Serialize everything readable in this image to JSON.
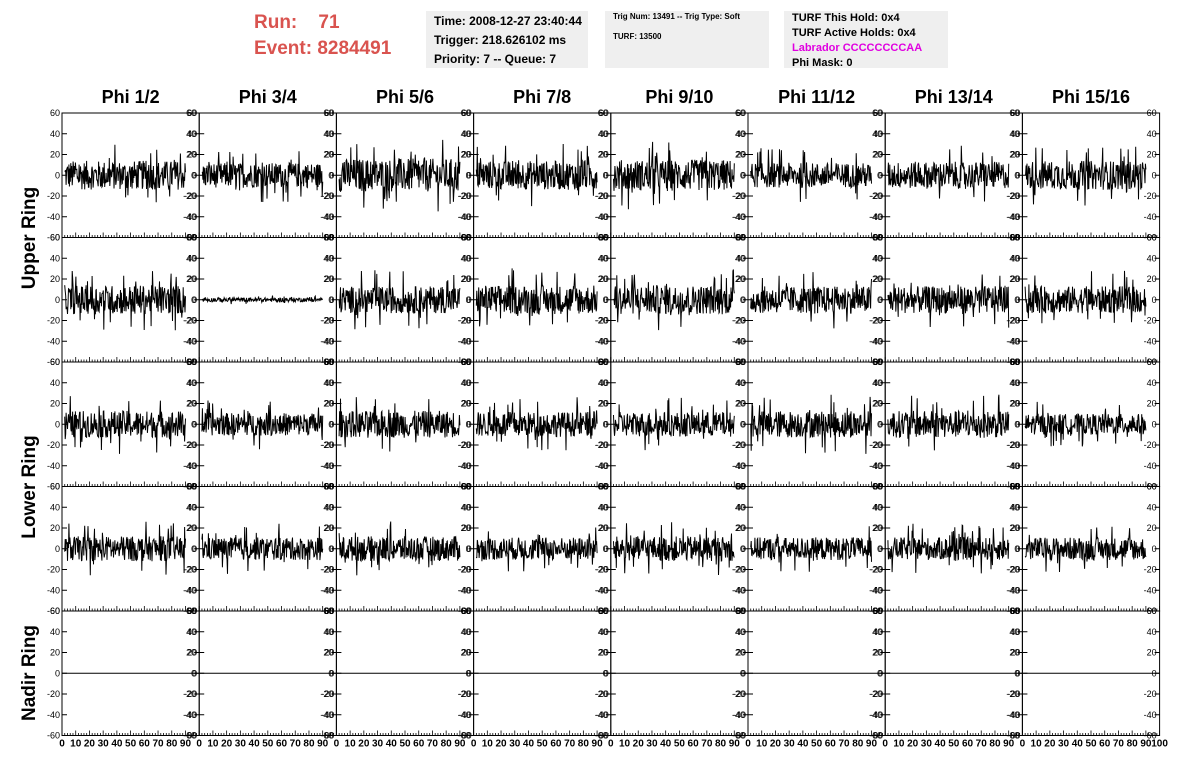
{
  "header": {
    "run_label": "Run:    71",
    "event_label": "Event: 8284491"
  },
  "info_time": {
    "time": "Time: 2008-12-27 23:40:44",
    "trigger": "Trigger: 218.626102 ms",
    "priority": "Priority: 7 -- Queue: 7"
  },
  "info_trig": {
    "trig": "Trig Num: 13491 -- Trig Type: Soft",
    "turf": "TURF: 13500"
  },
  "info_turf": {
    "hold": "TURF This Hold: 0x4",
    "active": "TURF Active Holds: 0x4",
    "labrador": "Labrador CCCCCCCCAA",
    "phimask": "Phi Mask: 0"
  },
  "columns": [
    "Phi 1/2",
    "Phi 3/4",
    "Phi 5/6",
    "Phi 7/8",
    "Phi 9/10",
    "Phi 11/12",
    "Phi 13/14",
    "Phi 15/16"
  ],
  "row_labels": [
    "Upper Ring",
    "Lower Ring",
    "Nadir Ring"
  ],
  "colors": {
    "accent": "#d9534f",
    "magenta": "#e000e0",
    "panel": "#efefef"
  },
  "chart_data": {
    "type": "line",
    "layout": "5 rows x 8 columns of waveform panels",
    "xlim": [
      0,
      100
    ],
    "ylim": [
      -60,
      60
    ],
    "y_ticks": [
      -60,
      -40,
      -20,
      0,
      20,
      40,
      60
    ],
    "x_ticks": [
      0,
      10,
      20,
      30,
      40,
      50,
      60,
      70,
      80,
      90,
      100
    ],
    "grid": false,
    "panel_rows": [
      {
        "amplitude": [
          14,
          12,
          16,
          14,
          15,
          12,
          13,
          14
        ]
      },
      {
        "amplitude": [
          14,
          2,
          13,
          14,
          14,
          13,
          13,
          13
        ]
      },
      {
        "amplitude": [
          13,
          11,
          13,
          12,
          12,
          13,
          13,
          10
        ]
      },
      {
        "amplitude": [
          12,
          11,
          12,
          11,
          12,
          11,
          11,
          11
        ]
      },
      {
        "amplitude": [
          0,
          0,
          0,
          0,
          0,
          0,
          0,
          0
        ]
      }
    ]
  }
}
